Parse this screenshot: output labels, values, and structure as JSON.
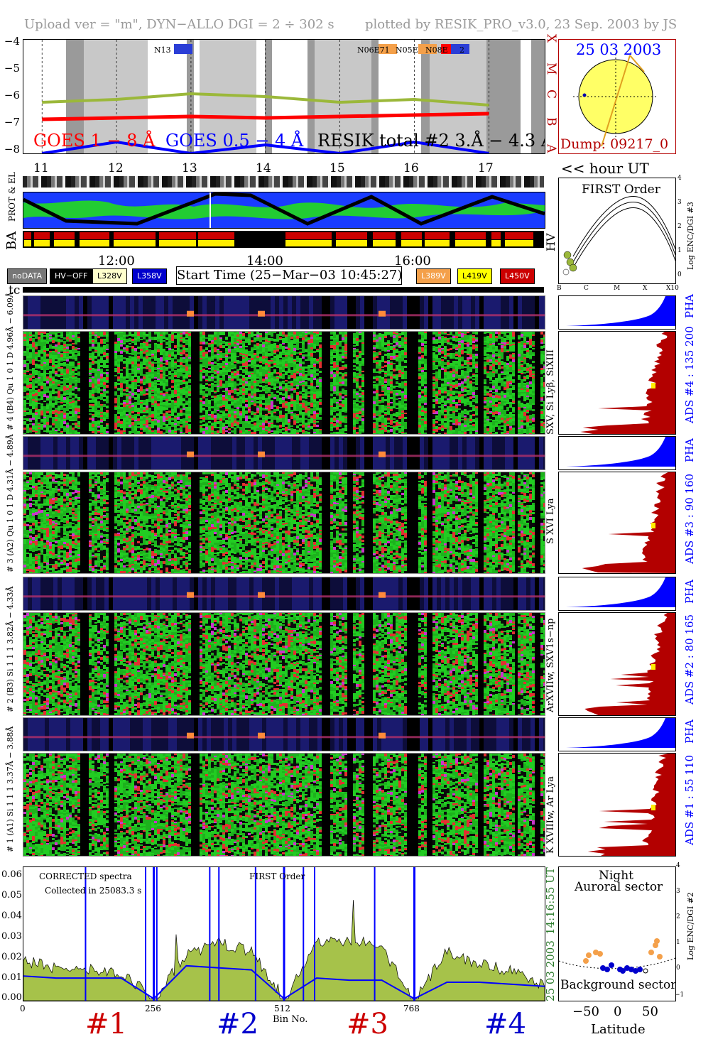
{
  "header": {
    "left": "Upload ver = \"m\", DYN−ALLO DGI =   2 ÷ 302 s",
    "right": "plotted by RESIK_PRO_v3.0, 23 Sep. 2003 by JS"
  },
  "goes": {
    "y_ticks": [
      "−4",
      "−5",
      "−6",
      "−7",
      "−8"
    ],
    "goes1_label": "GOES 1 − 8 Å",
    "goes05_label": "GOES 0.5 − 4 Å",
    "resik_label": "RESIK total #2  3.Å − 4.3 Å",
    "regions": [
      "N13",
      "N06E71",
      "N05E",
      "N08E",
      "2"
    ],
    "class_letters": [
      "X",
      "M",
      "C",
      "B",
      "A"
    ]
  },
  "hour_ticks": [
    "11",
    "12",
    "13",
    "14",
    "15",
    "16",
    "17"
  ],
  "hour_ut_label": "<< hour UT",
  "sun": {
    "date": "25 03 2003",
    "dump": "Dump: 09217_0"
  },
  "prot_el_label": "PROT & EL",
  "ba_label": "BA",
  "hv_label": "HV",
  "time_ticks": [
    "12:00",
    "14:00",
    "16:00"
  ],
  "legend": {
    "nodata": "noDATA",
    "hv_off": "HV−OFF",
    "l328": "L328V",
    "l358": "L358V",
    "start_time": "Start Time (25−Mar−03 10:45:27)",
    "l389": "L389V",
    "l419": "L419V",
    "l450": "L450V"
  },
  "tc_label": "tc",
  "first_order": {
    "title": "FIRST Order",
    "ylabel": "Log ENC/DGI #3",
    "y_ticks": [
      "4",
      "3",
      "2",
      "1",
      "0"
    ],
    "x_ticks": [
      "B",
      "C",
      "M",
      "X",
      "X10"
    ]
  },
  "channel_labels": {
    "pha4": "# 4 (B4) Qu 1 0 1 D 4.96Å − 6.09Å",
    "pha3": "# 3 (A2) Qu 1 0 1 D 4.31Å − 4.89Å",
    "pha2": "# 2 (B3) Si 1 1 1  3.82Å − 4.33Å",
    "pha1": "# 1 (A1) Si 1 1 1  3.37Å − 3.88Å"
  },
  "right_labels": {
    "ch4_lines": "SXV, Si Lyβ, SiXIII",
    "ch3_lines": "S XVI Lya",
    "ch2_lines": "ArXVIIw, SXV1s−np",
    "ch1_lines": "K XVIIIw, Ar Lya",
    "pha": "PHA",
    "ads4": "ADS #4 :   135 200",
    "ads3": "ADS #3 :    90 160",
    "ads2": "ADS #2 :    80 165",
    "ads1": "ADS #1 :    55 110"
  },
  "spectrum": {
    "y_ticks": [
      "0.06",
      "0.05",
      "0.04",
      "0.03",
      "0.02",
      "0.01",
      "0.00"
    ],
    "x_ticks": [
      "0",
      "256",
      "512",
      "768"
    ],
    "xlabel": "Bin No.",
    "corrected": "CORRECTED spectra",
    "collected": "Collected in 25083.3 s",
    "first_order": "FIRST Order",
    "date_vertical": "25 03 2003",
    "time_vertical": "14:16:55 UT",
    "channel_numbers": [
      "#1",
      "#2",
      "#3",
      "#4"
    ]
  },
  "latitude": {
    "night": "Night",
    "auroral": "Auroral sector",
    "background": "Background sector",
    "xlabel": "Latitude",
    "ylabel": "Log ENC/DGI #2",
    "x_ticks": [
      "−50",
      "0",
      "50"
    ],
    "y_ticks": [
      "4",
      "3",
      "2",
      "1",
      "0",
      "−1"
    ]
  },
  "colors": {
    "goes_long": "#ff0000",
    "goes_short": "#0000ff",
    "resik": "#9bb83a",
    "orange": "#f4a04a",
    "spectra_fill": "#a6c24a",
    "dark_red": "#b30000",
    "pha_blue": "#0000ff"
  },
  "chart_data": [
    {
      "type": "line",
      "title": "",
      "xlabel": "hour UT",
      "ylabel": "",
      "x": [
        11,
        12,
        13,
        14,
        15,
        16,
        17
      ],
      "ylim": [
        -8,
        -4
      ],
      "series": [
        {
          "name": "GOES 1 − 8 Å",
          "values": [
            -6.8,
            -6.75,
            -6.7,
            -6.75,
            -6.7,
            -6.65,
            -6.6
          ]
        },
        {
          "name": "GOES 0.5 − 4 Å",
          "values": [
            -8.0,
            -7.6,
            -8.0,
            -7.7,
            -8.0,
            -7.6,
            -8.0
          ]
        },
        {
          "name": "RESIK total #2  3.Å − 4.3 Å",
          "values": [
            -6.2,
            -6.1,
            -5.9,
            -6.0,
            -6.2,
            -6.1,
            -6.3
          ]
        }
      ]
    },
    {
      "type": "area",
      "title": "",
      "xlabel": "Bin No.",
      "ylabel": "",
      "x": [
        0,
        64,
        128,
        192,
        256,
        320,
        384,
        448,
        512,
        576,
        640,
        704,
        768,
        832,
        896,
        960,
        1024
      ],
      "ylim": [
        0,
        0.065
      ],
      "series": [
        {
          "name": "CORRECTED spectra",
          "values": [
            0.02,
            0.016,
            0.015,
            0.014,
            0.001,
            0.022,
            0.028,
            0.024,
            0.001,
            0.028,
            0.03,
            0.026,
            0.001,
            0.024,
            0.018,
            0.014,
            0.008
          ]
        },
        {
          "name": "",
          "values": [
            0.012,
            0.011,
            0.011,
            0.011,
            0.001,
            0.017,
            0.016,
            0.015,
            0.001,
            0.011,
            0.01,
            0.01,
            0.001,
            0.009,
            0.009,
            0.008,
            0.007
          ]
        }
      ]
    }
  ]
}
